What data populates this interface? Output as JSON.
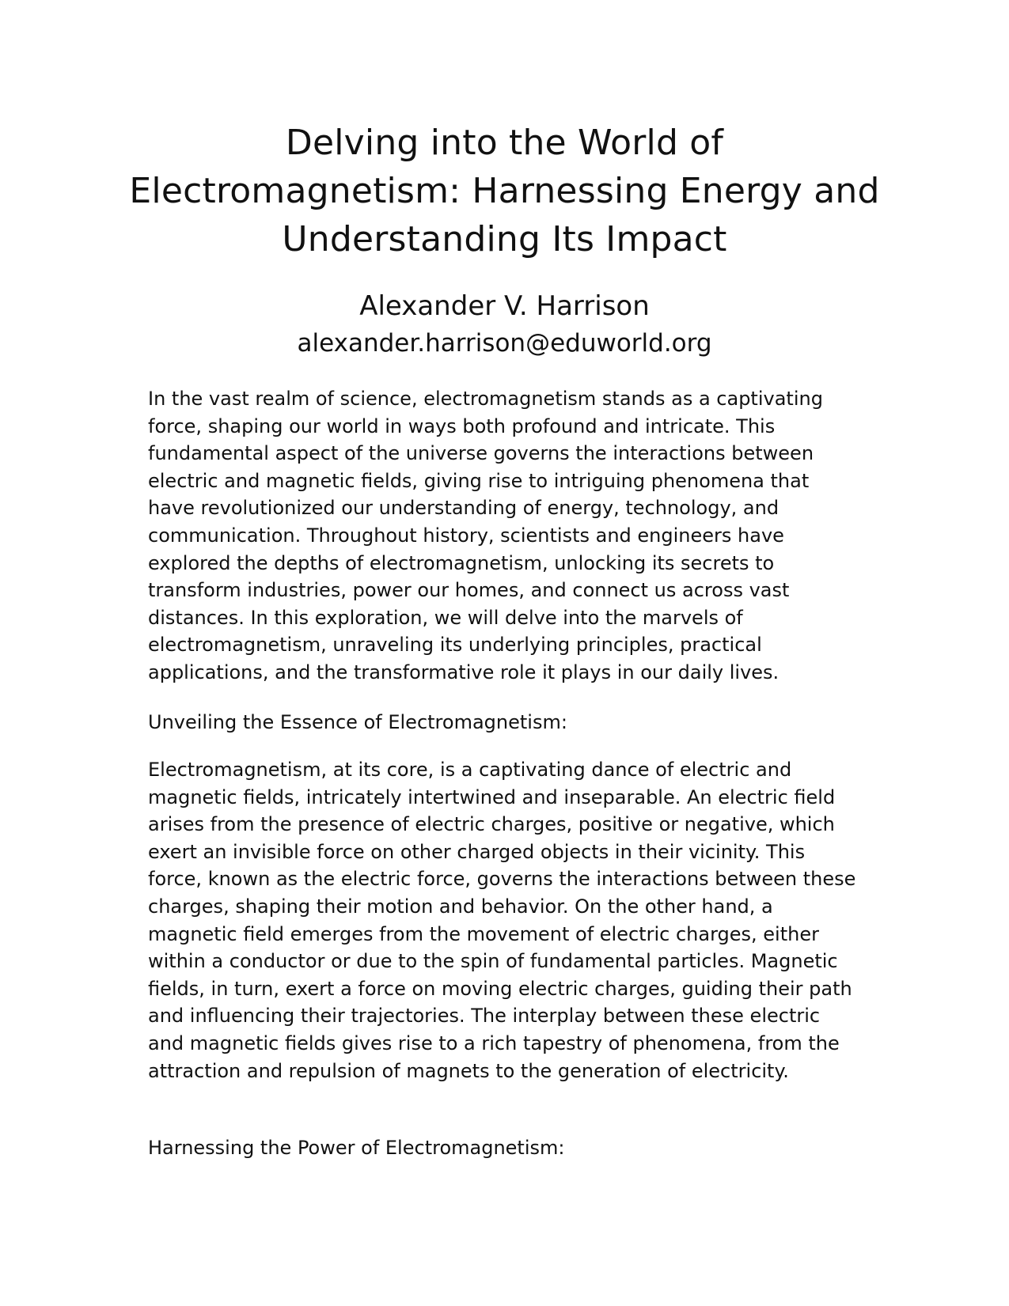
{
  "document": {
    "title": "Delving into the World of Electromagnetism: Harnessing Energy and Understanding Its Impact",
    "author": "Alexander V. Harrison",
    "email": "alexander.harrison@eduworld.org",
    "paragraphs": [
      "In the vast realm of science, electromagnetism stands as a captivating force, shaping our world in ways both profound and intricate. This fundamental aspect of the universe governs the interactions between electric and magnetic fields, giving rise to intriguing phenomena that have revolutionized our understanding of energy, technology, and communication. Throughout history, scientists and engineers have explored the depths of electromagnetism, unlocking its secrets to transform industries, power our homes, and connect us across vast distances. In this exploration, we will delve into the marvels of electromagnetism, unraveling its underlying principles, practical applications, and the transformative role it plays in our daily lives.",
      "Electromagnetism, at its core, is a captivating dance of electric and magnetic fields, intricately intertwined and inseparable. An electric field arises from the presence of electric charges, positive or negative, which exert an invisible force on other charged objects in their vicinity. This force, known as the electric force, governs the interactions between these charges, shaping their motion and behavior. On the other hand, a magnetic field emerges from the movement of electric charges, either within a conductor or due to the spin of fundamental particles. Magnetic fields, in turn, exert a force on moving electric charges, guiding their path and influencing their trajectories. The interplay between these electric and magnetic fields gives rise to a rich tapestry of phenomena, from the attraction and repulsion of magnets to the generation of electricity."
    ],
    "headings": [
      "Unveiling the Essence of Electromagnetism:",
      "Harnessing the Power of Electromagnetism:"
    ]
  }
}
